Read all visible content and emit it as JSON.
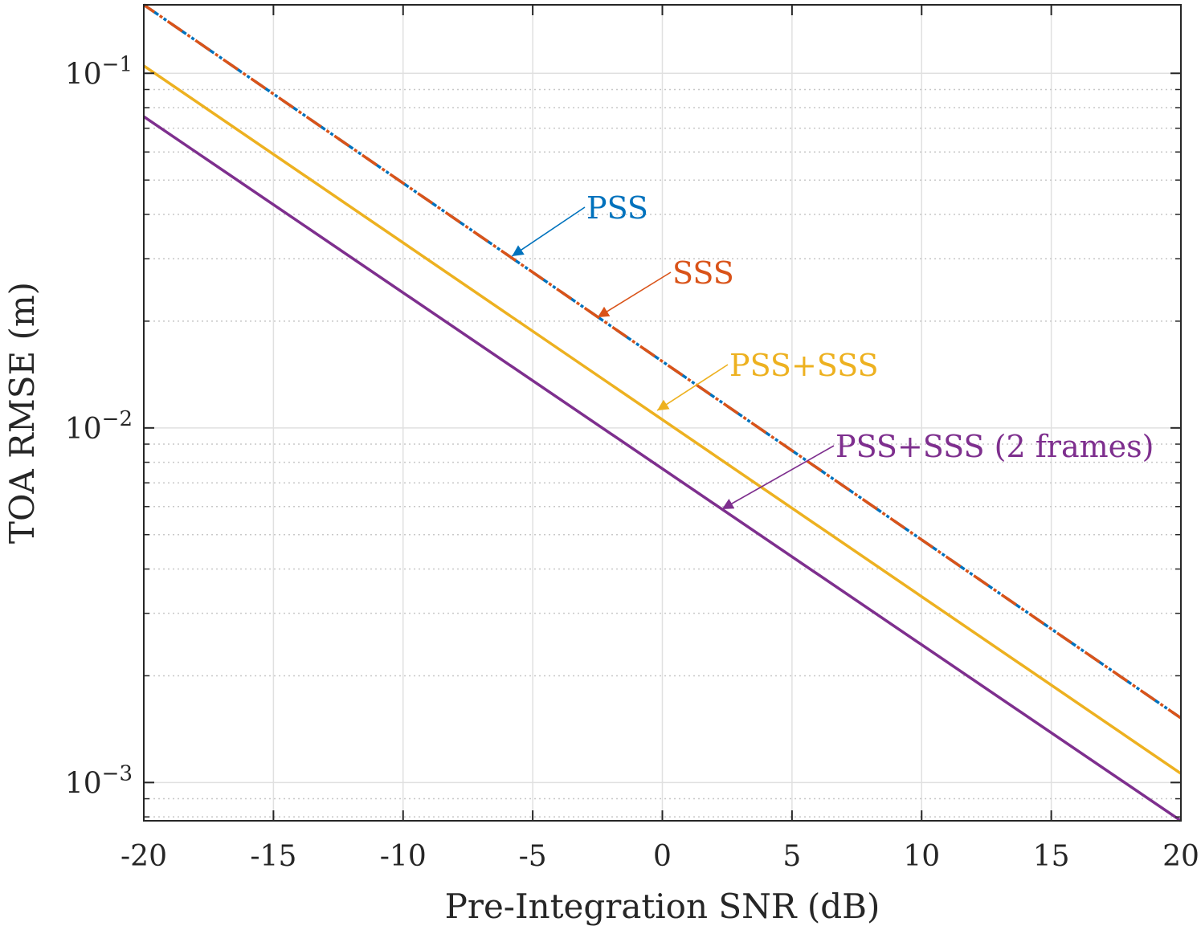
{
  "chart_data": {
    "type": "line",
    "title": "",
    "xlabel": "Pre-Integration SNR (dB)",
    "ylabel": "TOA RMSE (m)",
    "xlim": [
      -20,
      20
    ],
    "ylim": [
      0.00078,
      0.156
    ],
    "yscale": "log",
    "grid": true,
    "x_ticks": [
      -20,
      -15,
      -10,
      -5,
      0,
      5,
      10,
      15,
      20
    ],
    "x_tick_labels": [
      "-20",
      "-15",
      "-10",
      "-5",
      "0",
      "5",
      "10",
      "15",
      "20"
    ],
    "y_ticks": [
      0.001,
      0.01,
      0.1
    ],
    "y_tick_labels": [
      {
        "base": "10",
        "exp": "−3"
      },
      {
        "base": "10",
        "exp": "−2"
      },
      {
        "base": "10",
        "exp": "−1"
      }
    ],
    "series": [
      {
        "name": "PSS",
        "color": "#0072BD",
        "style": "dashdot",
        "x": [
          -20,
          20
        ],
        "y": [
          0.156,
          0.00152
        ]
      },
      {
        "name": "SSS",
        "color": "#D95319",
        "style": "dashdot",
        "x": [
          -20,
          20
        ],
        "y": [
          0.156,
          0.00152
        ]
      },
      {
        "name": "PSS+SSS",
        "color": "#EDB120",
        "style": "solid",
        "x": [
          -20,
          20
        ],
        "y": [
          0.105,
          0.00106
        ]
      },
      {
        "name": "PSS+SSS (2 frames)",
        "color": "#7E2F8E",
        "style": "solid",
        "x": [
          -20,
          20
        ],
        "y": [
          0.0755,
          0.00078
        ]
      }
    ],
    "annotations": [
      {
        "text": "PSS",
        "color": "#0072BD",
        "point_x": -5.8,
        "point_y": 0.0305
      },
      {
        "text": "SSS",
        "color": "#D95319",
        "point_x": -2.5,
        "point_y": 0.0205
      },
      {
        "text": "PSS+SSS",
        "color": "#EDB120",
        "point_x": -0.2,
        "point_y": 0.0112
      },
      {
        "text": "PSS+SSS (2 frames)",
        "color": "#7E2F8E",
        "point_x": 2.3,
        "point_y": 0.0059
      }
    ]
  }
}
